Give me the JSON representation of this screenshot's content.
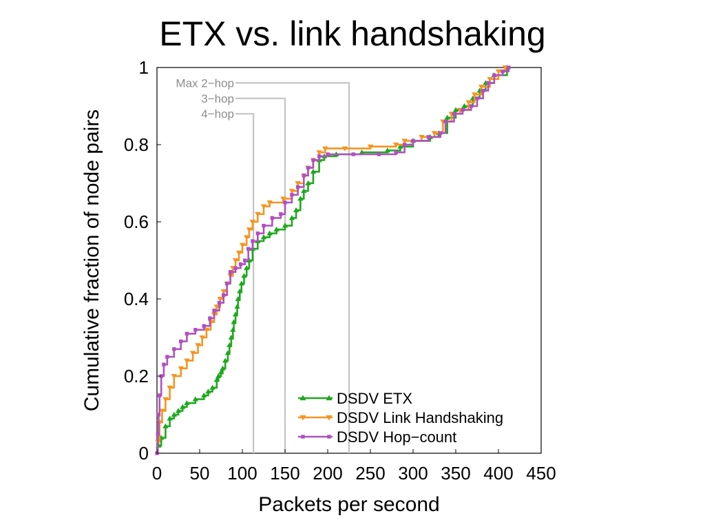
{
  "chart_data": {
    "type": "line",
    "title": "ETX vs. link handshaking",
    "xlabel": "Packets per second",
    "ylabel": "Cumulative fraction of node pairs",
    "xlim": [
      0,
      450
    ],
    "ylim": [
      0,
      1
    ],
    "xticks": [
      0,
      50,
      100,
      150,
      200,
      250,
      300,
      350,
      400,
      450
    ],
    "xtick_labels": [
      "0",
      "50",
      "100",
      "150",
      "200",
      "250",
      "300",
      "350",
      "400",
      "450"
    ],
    "yticks": [
      0,
      0.2,
      0.4,
      0.6,
      0.8,
      1
    ],
    "ytick_labels": [
      "0",
      "0.2",
      "0.4",
      "0.6",
      "0.8",
      "1"
    ],
    "grid": false,
    "legend_position": "bottom-right",
    "reference_lines": [
      {
        "label": "Max 2−hop",
        "x": 225,
        "y": 0.96
      },
      {
        "label": "3−hop",
        "x": 150,
        "y": 0.92
      },
      {
        "label": "4−hop",
        "x": 113,
        "y": 0.88
      }
    ],
    "series": [
      {
        "name": "DSDV ETX",
        "color": "#1ea81e",
        "marker": "triangle-up",
        "points": [
          [
            2,
            0.02
          ],
          [
            5,
            0.04
          ],
          [
            10,
            0.07
          ],
          [
            15,
            0.09
          ],
          [
            20,
            0.1
          ],
          [
            25,
            0.11
          ],
          [
            30,
            0.12
          ],
          [
            35,
            0.13
          ],
          [
            45,
            0.14
          ],
          [
            55,
            0.15
          ],
          [
            60,
            0.16
          ],
          [
            65,
            0.17
          ],
          [
            70,
            0.19
          ],
          [
            72,
            0.2
          ],
          [
            75,
            0.21
          ],
          [
            77,
            0.22
          ],
          [
            80,
            0.24
          ],
          [
            83,
            0.26
          ],
          [
            85,
            0.28
          ],
          [
            87,
            0.3
          ],
          [
            89,
            0.32
          ],
          [
            90,
            0.34
          ],
          [
            92,
            0.36
          ],
          [
            94,
            0.38
          ],
          [
            95,
            0.4
          ],
          [
            97,
            0.42
          ],
          [
            99,
            0.44
          ],
          [
            102,
            0.46
          ],
          [
            105,
            0.48
          ],
          [
            108,
            0.5
          ],
          [
            112,
            0.53
          ],
          [
            118,
            0.55
          ],
          [
            125,
            0.56
          ],
          [
            132,
            0.57
          ],
          [
            140,
            0.58
          ],
          [
            150,
            0.59
          ],
          [
            158,
            0.61
          ],
          [
            163,
            0.63
          ],
          [
            168,
            0.66
          ],
          [
            172,
            0.68
          ],
          [
            177,
            0.7
          ],
          [
            183,
            0.73
          ],
          [
            190,
            0.76
          ],
          [
            196,
            0.77
          ],
          [
            210,
            0.775
          ],
          [
            240,
            0.78
          ],
          [
            270,
            0.785
          ],
          [
            285,
            0.795
          ],
          [
            300,
            0.81
          ],
          [
            320,
            0.82
          ],
          [
            330,
            0.83
          ],
          [
            340,
            0.87
          ],
          [
            350,
            0.89
          ],
          [
            360,
            0.9
          ],
          [
            370,
            0.92
          ],
          [
            378,
            0.94
          ],
          [
            385,
            0.96
          ],
          [
            395,
            0.98
          ],
          [
            410,
            1.0
          ]
        ]
      },
      {
        "name": "DSDV Link Handshaking",
        "color": "#f5941e",
        "marker": "triangle-down",
        "points": [
          [
            1,
            0.03
          ],
          [
            3,
            0.08
          ],
          [
            6,
            0.11
          ],
          [
            10,
            0.14
          ],
          [
            15,
            0.17
          ],
          [
            20,
            0.2
          ],
          [
            28,
            0.22
          ],
          [
            35,
            0.24
          ],
          [
            42,
            0.26
          ],
          [
            48,
            0.28
          ],
          [
            53,
            0.3
          ],
          [
            58,
            0.32
          ],
          [
            63,
            0.34
          ],
          [
            67,
            0.36
          ],
          [
            70,
            0.38
          ],
          [
            74,
            0.4
          ],
          [
            78,
            0.42
          ],
          [
            82,
            0.44
          ],
          [
            86,
            0.46
          ],
          [
            89,
            0.48
          ],
          [
            92,
            0.5
          ],
          [
            96,
            0.52
          ],
          [
            100,
            0.54
          ],
          [
            105,
            0.56
          ],
          [
            108,
            0.58
          ],
          [
            112,
            0.6
          ],
          [
            118,
            0.62
          ],
          [
            125,
            0.64
          ],
          [
            132,
            0.65
          ],
          [
            148,
            0.66
          ],
          [
            158,
            0.68
          ],
          [
            165,
            0.7
          ],
          [
            172,
            0.72
          ],
          [
            177,
            0.74
          ],
          [
            183,
            0.76
          ],
          [
            190,
            0.78
          ],
          [
            197,
            0.79
          ],
          [
            220,
            0.79
          ],
          [
            250,
            0.795
          ],
          [
            280,
            0.8
          ],
          [
            290,
            0.81
          ],
          [
            310,
            0.82
          ],
          [
            325,
            0.83
          ],
          [
            335,
            0.86
          ],
          [
            345,
            0.88
          ],
          [
            355,
            0.89
          ],
          [
            365,
            0.91
          ],
          [
            372,
            0.93
          ],
          [
            380,
            0.95
          ],
          [
            390,
            0.97
          ],
          [
            400,
            0.99
          ],
          [
            408,
            1.0
          ]
        ]
      },
      {
        "name": "DSDV Hop−count",
        "color": "#b050c0",
        "marker": "square",
        "points": [
          [
            0,
            0.0
          ],
          [
            1,
            0.05
          ],
          [
            2,
            0.1
          ],
          [
            3,
            0.15
          ],
          [
            5,
            0.2
          ],
          [
            8,
            0.23
          ],
          [
            12,
            0.25
          ],
          [
            20,
            0.27
          ],
          [
            28,
            0.29
          ],
          [
            35,
            0.31
          ],
          [
            45,
            0.32
          ],
          [
            55,
            0.33
          ],
          [
            62,
            0.35
          ],
          [
            67,
            0.37
          ],
          [
            73,
            0.39
          ],
          [
            78,
            0.41
          ],
          [
            82,
            0.44
          ],
          [
            86,
            0.47
          ],
          [
            92,
            0.48
          ],
          [
            98,
            0.49
          ],
          [
            103,
            0.5
          ],
          [
            107,
            0.53
          ],
          [
            112,
            0.55
          ],
          [
            118,
            0.57
          ],
          [
            125,
            0.59
          ],
          [
            135,
            0.61
          ],
          [
            145,
            0.62
          ],
          [
            150,
            0.65
          ],
          [
            158,
            0.67
          ],
          [
            165,
            0.69
          ],
          [
            172,
            0.72
          ],
          [
            177,
            0.74
          ],
          [
            183,
            0.76
          ],
          [
            190,
            0.77
          ],
          [
            200,
            0.775
          ],
          [
            230,
            0.775
          ],
          [
            260,
            0.775
          ],
          [
            280,
            0.78
          ],
          [
            290,
            0.8
          ],
          [
            300,
            0.81
          ],
          [
            318,
            0.82
          ],
          [
            332,
            0.83
          ],
          [
            338,
            0.86
          ],
          [
            348,
            0.88
          ],
          [
            358,
            0.89
          ],
          [
            368,
            0.9
          ],
          [
            375,
            0.92
          ],
          [
            382,
            0.94
          ],
          [
            388,
            0.96
          ],
          [
            395,
            0.98
          ],
          [
            405,
            0.99
          ],
          [
            412,
            1.0
          ]
        ]
      }
    ]
  }
}
